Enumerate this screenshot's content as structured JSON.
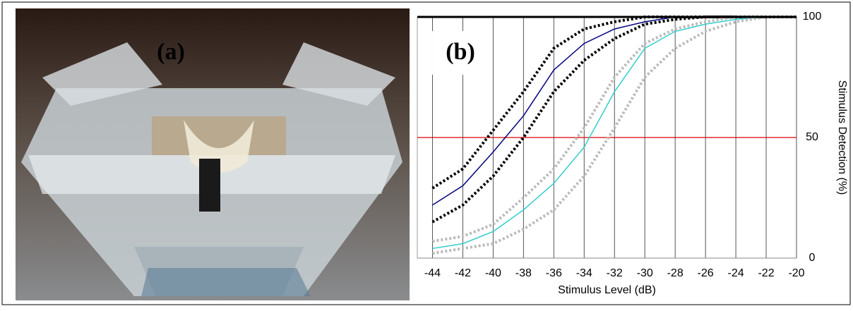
{
  "photo": {
    "label": "(a)"
  },
  "chart_data": {
    "type": "line",
    "label": "(b)",
    "x_label": "Stimulus Level (dB)",
    "y_label": "Stimulus Detection (%)",
    "x": [
      -44,
      -42,
      -40,
      -38,
      -36,
      -34,
      -32,
      -30,
      -28,
      -26,
      -24,
      -22,
      -20
    ],
    "series": [
      {
        "color": "#000080",
        "style": "solid",
        "values": [
          22,
          30,
          44,
          59,
          78,
          89,
          95,
          98,
          100,
          100,
          100,
          100,
          100
        ]
      },
      {
        "color": "#000000",
        "style": "dotted",
        "values": [
          29,
          37,
          53,
          69,
          87,
          95,
          98,
          100,
          100,
          100,
          100,
          100,
          100
        ]
      },
      {
        "color": "#000000",
        "style": "dotted",
        "values": [
          15,
          22,
          34,
          50,
          69,
          82,
          91,
          97,
          99,
          100,
          100,
          100,
          100
        ]
      },
      {
        "color": "#33cccc",
        "style": "solid",
        "values": [
          4,
          6,
          11,
          20,
          31,
          46,
          69,
          87,
          94,
          97,
          99,
          100,
          100
        ]
      },
      {
        "color": "#bbbbbb",
        "style": "dotted",
        "values": [
          7,
          9,
          14,
          25,
          37,
          54,
          75,
          89,
          95,
          98,
          100,
          100,
          100
        ]
      },
      {
        "color": "#bbbbbb",
        "style": "dotted",
        "values": [
          2,
          4,
          6,
          12,
          20,
          34,
          54,
          75,
          87,
          94,
          98,
          100,
          100
        ]
      }
    ],
    "hline": {
      "value": 50,
      "color": "#dd0000"
    },
    "xlim": [
      -45,
      -20
    ],
    "xticks": [
      -44,
      -42,
      -40,
      -38,
      -36,
      -34,
      -32,
      -30,
      -28,
      -26,
      -24,
      -22,
      -20
    ],
    "ylim": [
      0,
      100
    ],
    "yticks": [
      0,
      50,
      100
    ],
    "y_axis_side": "right",
    "grid": true
  }
}
